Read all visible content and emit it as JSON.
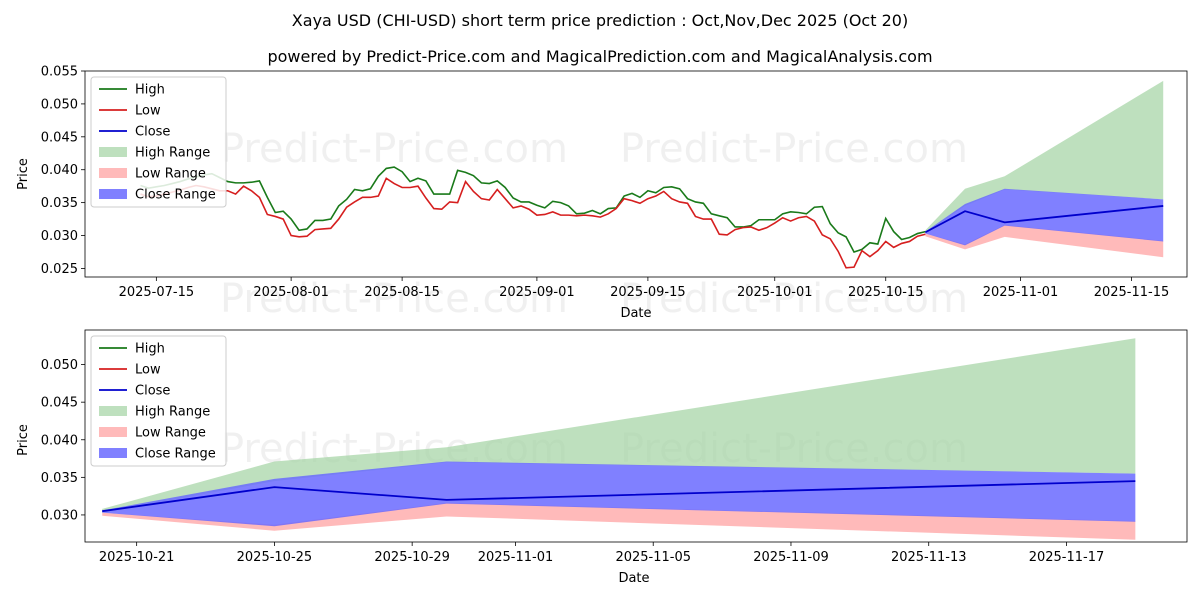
{
  "title_line1": "Xaya USD (CHI-USD) short term price prediction : Oct,Nov,Dec 2025 (Oct 20)",
  "title_line2": "powered by Predict-Price.com and MagicalPrediction.com and MagicalAnalysis.com",
  "watermark": "Predict-Price.com",
  "colors": {
    "high": "#1a7a1a",
    "low": "#d61f1f",
    "close": "#0000cc",
    "high_range": "#a8d5a8",
    "low_range": "#ffb3b3",
    "close_range": "#6a6aff"
  },
  "chart_data": [
    {
      "type": "line",
      "name": "top-chart",
      "xlabel": "Date",
      "ylabel": "Price",
      "x_ticks": [
        "2025-07-15",
        "2025-08-01",
        "2025-08-15",
        "2025-09-01",
        "2025-09-15",
        "2025-10-01",
        "2025-10-15",
        "2025-11-01",
        "2025-11-15"
      ],
      "y_ticks": [
        "0.025",
        "0.030",
        "0.035",
        "0.040",
        "0.045",
        "0.050",
        "0.055"
      ],
      "xlim": [
        "2025-07-06",
        "2025-11-22"
      ],
      "ylim": [
        0.0237,
        0.055
      ],
      "legend": [
        "High",
        "Low",
        "Close",
        "High Range",
        "Low Range",
        "Close Range"
      ],
      "legend_position": "upper-left",
      "history_start": "2025-07-13",
      "high": [
        0.0376,
        0.0372,
        0.0374,
        0.0376,
        0.0379,
        0.0382,
        0.0386,
        0.0389,
        0.0392,
        0.0394,
        0.0388,
        0.0382,
        0.038,
        0.038,
        0.0381,
        0.0383,
        0.0358,
        0.0335,
        0.0337,
        0.0325,
        0.0308,
        0.031,
        0.0323,
        0.0323,
        0.0325,
        0.0345,
        0.0355,
        0.037,
        0.0368,
        0.0371,
        0.039,
        0.0402,
        0.0404,
        0.0397,
        0.0382,
        0.0387,
        0.0383,
        0.0363,
        0.0363,
        0.0363,
        0.0399,
        0.0396,
        0.0391,
        0.038,
        0.0379,
        0.0383,
        0.0373,
        0.0357,
        0.0351,
        0.0351,
        0.0346,
        0.0342,
        0.0352,
        0.035,
        0.0345,
        0.0333,
        0.0334,
        0.0338,
        0.0333,
        0.0341,
        0.0342,
        0.036,
        0.0364,
        0.0358,
        0.0368,
        0.0365,
        0.0373,
        0.0374,
        0.0371,
        0.0356,
        0.0351,
        0.0349,
        0.0333,
        0.033,
        0.0327,
        0.0313,
        0.0313,
        0.0315,
        0.0324,
        0.0324,
        0.0324,
        0.0333,
        0.0336,
        0.0335,
        0.0333,
        0.0343,
        0.0344,
        0.0318,
        0.0304,
        0.0298,
        0.0275,
        0.0279,
        0.0289,
        0.0287,
        0.0326,
        0.0306,
        0.0294,
        0.0297,
        0.0303,
        0.0306
      ],
      "low": [
        0.0363,
        0.0359,
        0.036,
        0.0363,
        0.0366,
        0.0369,
        0.0373,
        0.0376,
        0.0374,
        0.0371,
        0.0368,
        0.0368,
        0.0363,
        0.0375,
        0.0368,
        0.0358,
        0.0332,
        0.0329,
        0.0325,
        0.03,
        0.0298,
        0.0299,
        0.0309,
        0.031,
        0.0311,
        0.0325,
        0.0343,
        0.0351,
        0.0358,
        0.0358,
        0.036,
        0.0387,
        0.0379,
        0.0373,
        0.0373,
        0.0375,
        0.0357,
        0.0341,
        0.034,
        0.0351,
        0.035,
        0.0382,
        0.0367,
        0.0356,
        0.0354,
        0.037,
        0.0356,
        0.0342,
        0.0345,
        0.034,
        0.0331,
        0.0332,
        0.0336,
        0.0331,
        0.0331,
        0.033,
        0.0331,
        0.033,
        0.0328,
        0.0333,
        0.0341,
        0.0356,
        0.0353,
        0.0349,
        0.0356,
        0.036,
        0.0367,
        0.0356,
        0.0351,
        0.0349,
        0.0329,
        0.0325,
        0.0325,
        0.0302,
        0.0301,
        0.0309,
        0.0312,
        0.0313,
        0.0308,
        0.0312,
        0.0319,
        0.0327,
        0.0322,
        0.0327,
        0.0329,
        0.0322,
        0.0301,
        0.0295,
        0.0276,
        0.0251,
        0.0252,
        0.0277,
        0.0268,
        0.0277,
        0.0291,
        0.0282,
        0.0288,
        0.0291,
        0.0299,
        0.0302
      ],
      "forecast": {
        "dates": [
          "2025-10-20",
          "2025-10-25",
          "2025-10-30",
          "2025-11-19"
        ],
        "close": [
          0.0305,
          0.0337,
          0.032,
          0.0345
        ],
        "high_range_upper": [
          0.0308,
          0.0371,
          0.039,
          0.0535
        ],
        "high_range_lower": [
          0.0303,
          0.0345,
          0.037,
          0.0355
        ],
        "close_range_upper": [
          0.0306,
          0.0348,
          0.0371,
          0.0355
        ],
        "close_range_lower": [
          0.0303,
          0.0285,
          0.0315,
          0.0291
        ],
        "low_range_upper": [
          0.0303,
          0.0287,
          0.0316,
          0.0292
        ],
        "low_range_lower": [
          0.0299,
          0.0279,
          0.0298,
          0.0267
        ]
      }
    },
    {
      "type": "area",
      "name": "bottom-chart",
      "xlabel": "Date",
      "ylabel": "Price",
      "x_ticks": [
        "2025-10-21",
        "2025-10-25",
        "2025-10-29",
        "2025-11-01",
        "2025-11-05",
        "2025-11-09",
        "2025-11-13",
        "2025-11-17"
      ],
      "y_ticks": [
        "0.030",
        "0.035",
        "0.040",
        "0.045",
        "0.050"
      ],
      "xlim": [
        "2025-10-19.5",
        "2025-11-20.5"
      ],
      "ylim": [
        0.0264,
        0.0546
      ],
      "legend": [
        "High",
        "Low",
        "Close",
        "High Range",
        "Low Range",
        "Close Range"
      ],
      "legend_position": "upper-left",
      "forecast": {
        "dates": [
          "2025-10-20",
          "2025-10-25",
          "2025-10-30",
          "2025-11-19"
        ],
        "close": [
          0.0305,
          0.0337,
          0.032,
          0.0345
        ],
        "high_range_upper": [
          0.0308,
          0.0371,
          0.039,
          0.0535
        ],
        "high_range_lower": [
          0.0303,
          0.0345,
          0.037,
          0.0355
        ],
        "close_range_upper": [
          0.0306,
          0.0348,
          0.0371,
          0.0355
        ],
        "close_range_lower": [
          0.0303,
          0.0285,
          0.0315,
          0.0291
        ],
        "low_range_upper": [
          0.0303,
          0.0287,
          0.0316,
          0.0292
        ],
        "low_range_lower": [
          0.0299,
          0.0279,
          0.0298,
          0.0267
        ]
      }
    }
  ]
}
